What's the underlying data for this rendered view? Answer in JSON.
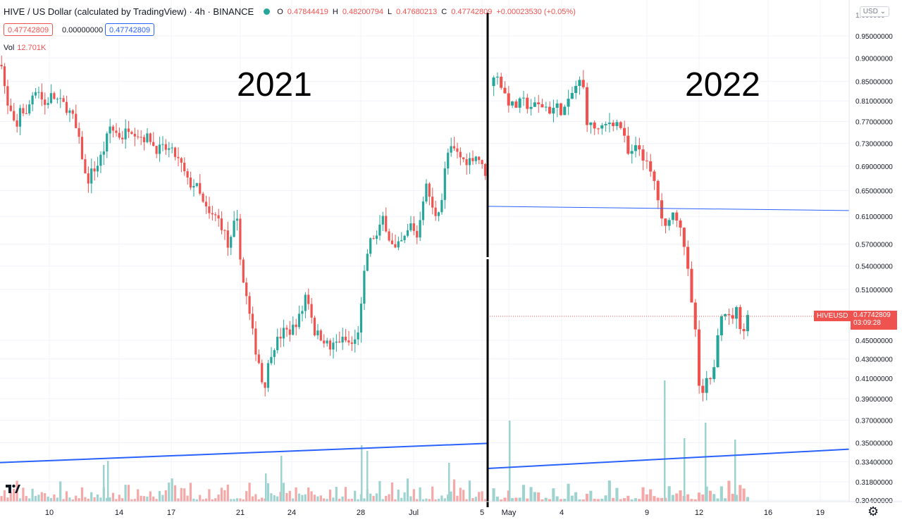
{
  "header": {
    "symbol": "HIVE / US Dollar (calculated by TradingView) · 4h · BINANCE",
    "o_label": "O",
    "o_value": "0.47844419",
    "h_label": "H",
    "h_value": "0.48200794",
    "l_label": "L",
    "l_value": "0.47680213",
    "c_label": "C",
    "c_value": "0.47742809",
    "change": "+0.00023530 (+0.05%)"
  },
  "pills": {
    "sell": "0.47742809",
    "spread": "0.00000000",
    "buy": "0.47742809"
  },
  "volume": {
    "label": "Vol",
    "value": "12.701K"
  },
  "annotations": {
    "left_year": "2021",
    "right_year": "2022"
  },
  "currency_button": "USD",
  "price_tag": {
    "symbol": "HIVEUSD",
    "price": "0.47742809",
    "countdown": "03:09:28"
  },
  "colors": {
    "up": "#26a69a",
    "down": "#ef5350",
    "vol_up": "#9fd3cf",
    "vol_down": "#f4a9a8",
    "trendline": "#2962ff",
    "divider": "#000000"
  },
  "icons": {
    "logo": "tradingview-logo-icon",
    "settings": "gear-icon"
  },
  "chart_data": [
    {
      "type": "candlestick",
      "title": "2021",
      "x_ticks": [
        "10",
        "14",
        "17",
        "21",
        "24",
        "28",
        "Jul",
        "5"
      ],
      "y_ticks": [
        "0.95000000",
        "0.90000000",
        "0.85000000",
        "0.81000000",
        "0.77000000",
        "0.73000000",
        "0.69000000",
        "0.65000000",
        "0.61000000",
        "0.57000000",
        "0.54000000",
        "0.51000000",
        "0.45000000",
        "0.43000000",
        "0.41000000",
        "0.39000000",
        "0.37000000",
        "0.35000000",
        "0.33400000",
        "0.31800000",
        "0.30400000"
      ],
      "y_scale": "log",
      "price_path": [
        [
          0,
          0.885
        ],
        [
          3,
          0.91
        ],
        [
          12,
          0.8
        ],
        [
          20,
          0.78
        ],
        [
          25,
          0.74
        ],
        [
          30,
          0.8
        ],
        [
          40,
          0.78
        ],
        [
          47,
          0.82
        ],
        [
          55,
          0.84
        ],
        [
          65,
          0.8
        ],
        [
          75,
          0.82
        ],
        [
          85,
          0.81
        ],
        [
          95,
          0.8
        ],
        [
          105,
          0.78
        ],
        [
          115,
          0.73
        ],
        [
          120,
          0.7
        ],
        [
          125,
          0.66
        ],
        [
          132,
          0.68
        ],
        [
          140,
          0.69
        ],
        [
          150,
          0.72
        ],
        [
          158,
          0.76
        ],
        [
          166,
          0.75
        ],
        [
          175,
          0.74
        ],
        [
          185,
          0.76
        ],
        [
          195,
          0.75
        ],
        [
          205,
          0.74
        ],
        [
          215,
          0.74
        ],
        [
          222,
          0.72
        ],
        [
          230,
          0.72
        ],
        [
          240,
          0.72
        ],
        [
          250,
          0.71
        ],
        [
          260,
          0.69
        ],
        [
          270,
          0.66
        ],
        [
          280,
          0.66
        ],
        [
          290,
          0.63
        ],
        [
          300,
          0.61
        ],
        [
          310,
          0.61
        ],
        [
          320,
          0.59
        ],
        [
          327,
          0.56
        ],
        [
          335,
          0.6
        ],
        [
          340,
          0.6
        ],
        [
          345,
          0.53
        ],
        [
          352,
          0.5
        ],
        [
          358,
          0.47
        ],
        [
          365,
          0.44
        ],
        [
          372,
          0.42
        ],
        [
          376,
          0.395
        ],
        [
          382,
          0.42
        ],
        [
          388,
          0.44
        ],
        [
          396,
          0.45
        ],
        [
          405,
          0.46
        ],
        [
          415,
          0.46
        ],
        [
          422,
          0.47
        ],
        [
          430,
          0.48
        ],
        [
          436,
          0.505
        ],
        [
          442,
          0.49
        ],
        [
          448,
          0.46
        ],
        [
          456,
          0.455
        ],
        [
          464,
          0.45
        ],
        [
          470,
          0.44
        ],
        [
          476,
          0.445
        ],
        [
          484,
          0.45
        ],
        [
          492,
          0.45
        ],
        [
          500,
          0.445
        ],
        [
          508,
          0.45
        ],
        [
          514,
          0.48
        ],
        [
          518,
          0.52
        ],
        [
          524,
          0.56
        ],
        [
          530,
          0.58
        ],
        [
          538,
          0.58
        ],
        [
          546,
          0.61
        ],
        [
          554,
          0.58
        ],
        [
          562,
          0.56
        ],
        [
          570,
          0.57
        ],
        [
          578,
          0.58
        ],
        [
          586,
          0.6
        ],
        [
          594,
          0.58
        ],
        [
          600,
          0.62
        ],
        [
          606,
          0.66
        ],
        [
          612,
          0.64
        ],
        [
          618,
          0.61
        ],
        [
          624,
          0.62
        ],
        [
          630,
          0.64
        ],
        [
          636,
          0.71
        ],
        [
          644,
          0.72
        ],
        [
          652,
          0.71
        ],
        [
          660,
          0.7
        ],
        [
          668,
          0.7
        ],
        [
          676,
          0.71
        ],
        [
          684,
          0.7
        ],
        [
          688,
          0.68
        ]
      ],
      "volume_spikes": [
        [
          146,
          52
        ],
        [
          152,
          58
        ],
        [
          376,
          40
        ],
        [
          398,
          65
        ],
        [
          512,
          80
        ],
        [
          520,
          72
        ],
        [
          636,
          55
        ]
      ],
      "trendline": {
        "from": [
          0,
          0.3334
        ],
        "to": [
          692,
          0.3495
        ]
      }
    },
    {
      "type": "candlestick",
      "title": "2022",
      "x_ticks": [
        "May",
        "4",
        "9",
        "12",
        "16",
        "19"
      ],
      "y_ticks": [
        "0.95000000",
        "0.90000000",
        "0.85000000",
        "0.81000000",
        "0.77000000",
        "0.73000000",
        "0.69000000",
        "0.65000000",
        "0.61000000",
        "0.57000000",
        "0.54000000",
        "0.51000000",
        "0.45000000",
        "0.43000000",
        "0.41000000",
        "0.39000000",
        "0.37000000",
        "0.35000000",
        "0.33400000",
        "0.31800000",
        "0.30400000"
      ],
      "y_scale": "log",
      "price_path": [
        [
          698,
          0.84
        ],
        [
          702,
          0.85
        ],
        [
          708,
          0.87
        ],
        [
          714,
          0.84
        ],
        [
          720,
          0.82
        ],
        [
          728,
          0.8
        ],
        [
          736,
          0.8
        ],
        [
          744,
          0.81
        ],
        [
          752,
          0.8
        ],
        [
          760,
          0.8
        ],
        [
          768,
          0.8
        ],
        [
          776,
          0.8
        ],
        [
          784,
          0.79
        ],
        [
          792,
          0.8
        ],
        [
          800,
          0.79
        ],
        [
          808,
          0.8
        ],
        [
          816,
          0.83
        ],
        [
          824,
          0.85
        ],
        [
          830,
          0.84
        ],
        [
          836,
          0.77
        ],
        [
          842,
          0.76
        ],
        [
          848,
          0.76
        ],
        [
          854,
          0.75
        ],
        [
          860,
          0.76
        ],
        [
          868,
          0.77
        ],
        [
          876,
          0.77
        ],
        [
          884,
          0.76
        ],
        [
          890,
          0.73
        ],
        [
          896,
          0.7
        ],
        [
          902,
          0.72
        ],
        [
          910,
          0.72
        ],
        [
          918,
          0.7
        ],
        [
          924,
          0.68
        ],
        [
          930,
          0.67
        ],
        [
          936,
          0.64
        ],
        [
          942,
          0.6
        ],
        [
          948,
          0.59
        ],
        [
          954,
          0.62
        ],
        [
          960,
          0.61
        ],
        [
          966,
          0.61
        ],
        [
          972,
          0.58
        ],
        [
          978,
          0.54
        ],
        [
          982,
          0.5
        ],
        [
          986,
          0.48
        ],
        [
          990,
          0.46
        ],
        [
          994,
          0.4
        ],
        [
          998,
          0.39
        ],
        [
          1002,
          0.4
        ],
        [
          1008,
          0.41
        ],
        [
          1014,
          0.4
        ],
        [
          1018,
          0.45
        ],
        [
          1024,
          0.47
        ],
        [
          1028,
          0.49
        ],
        [
          1034,
          0.48
        ],
        [
          1040,
          0.47
        ],
        [
          1046,
          0.49
        ],
        [
          1052,
          0.47
        ],
        [
          1058,
          0.46
        ],
        [
          1062,
          0.477
        ]
      ],
      "volume_spikes": [
        [
          722,
          115
        ],
        [
          942,
          172
        ],
        [
          970,
          90
        ],
        [
          1000,
          112
        ],
        [
          1042,
          88
        ]
      ],
      "trendline": {
        "from": [
          692,
          0.3286
        ],
        "to": [
          1205,
          0.3445
        ]
      },
      "horizontal_line": 0.6253,
      "last_price": 0.47742809
    }
  ]
}
